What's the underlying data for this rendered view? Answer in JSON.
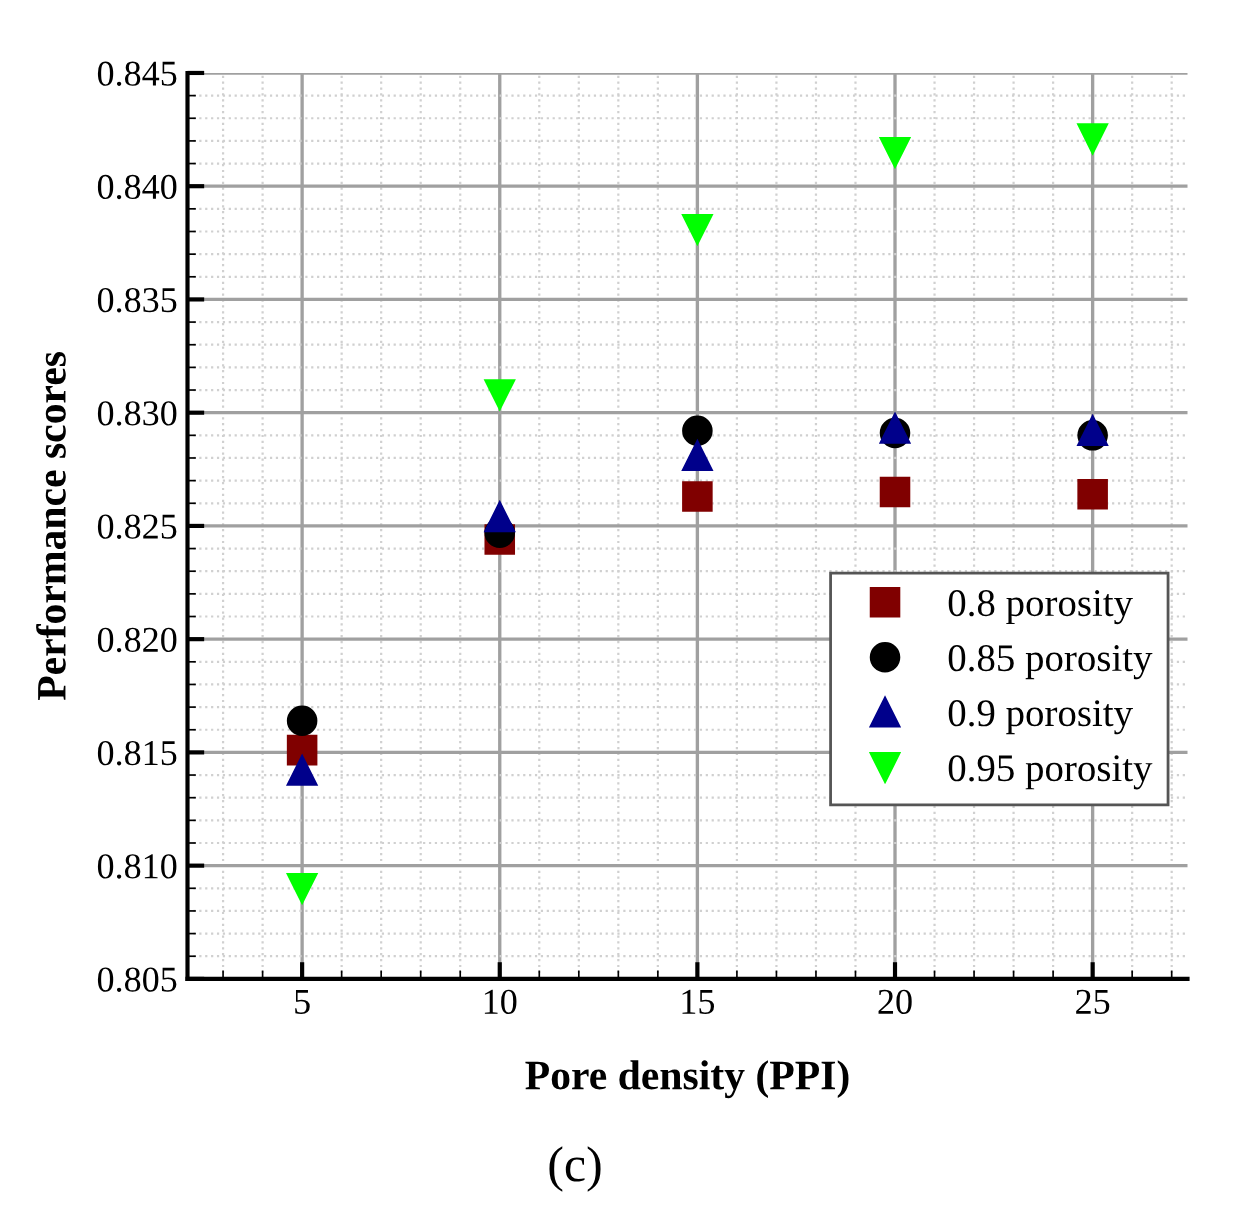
{
  "chart_data": {
    "type": "scatter",
    "xlabel": "Pore density (PPI)",
    "ylabel": "Performance scores",
    "annotations": [
      "(c)"
    ],
    "x": [
      5,
      10,
      15,
      20,
      25
    ],
    "series": [
      {
        "name": "0.8 porosity",
        "color": "#800000",
        "marker": "square",
        "values": [
          0.8151,
          0.8244,
          0.8263,
          0.8265,
          0.8264
        ]
      },
      {
        "name": "0.85 porosity",
        "color": "#000000",
        "marker": "circle",
        "values": [
          0.8164,
          0.8247,
          0.8292,
          0.8291,
          0.829
        ]
      },
      {
        "name": "0.9 porosity",
        "color": "#00008b",
        "marker": "triangle",
        "values": [
          0.8142,
          0.8254,
          0.8281,
          0.8293,
          0.8292
        ]
      },
      {
        "name": "0.95 porosity",
        "color": "#00ff00",
        "marker": "triangle",
        "values": [
          0.809,
          0.8308,
          0.8381,
          0.8415,
          0.8421
        ]
      }
    ],
    "xlim": [
      2.1,
      27.4
    ],
    "xticks": [
      5,
      10,
      15,
      20,
      25
    ],
    "ylim": [
      0.805,
      0.845
    ],
    "yticks": [
      {
        "value": 0.805,
        "label": "0.805"
      },
      {
        "value": 0.81,
        "label": "0.810"
      },
      {
        "value": 0.815,
        "label": "0.815"
      },
      {
        "value": 0.82,
        "label": "0.820"
      },
      {
        "value": 0.825,
        "label": "0.825"
      },
      {
        "value": 0.83,
        "label": "0.830"
      },
      {
        "value": 0.835,
        "label": "0.835"
      },
      {
        "value": 0.84,
        "label": "0.840"
      },
      {
        "value": 0.845,
        "label": "0.845"
      }
    ],
    "grid": true,
    "legend": "right"
  }
}
